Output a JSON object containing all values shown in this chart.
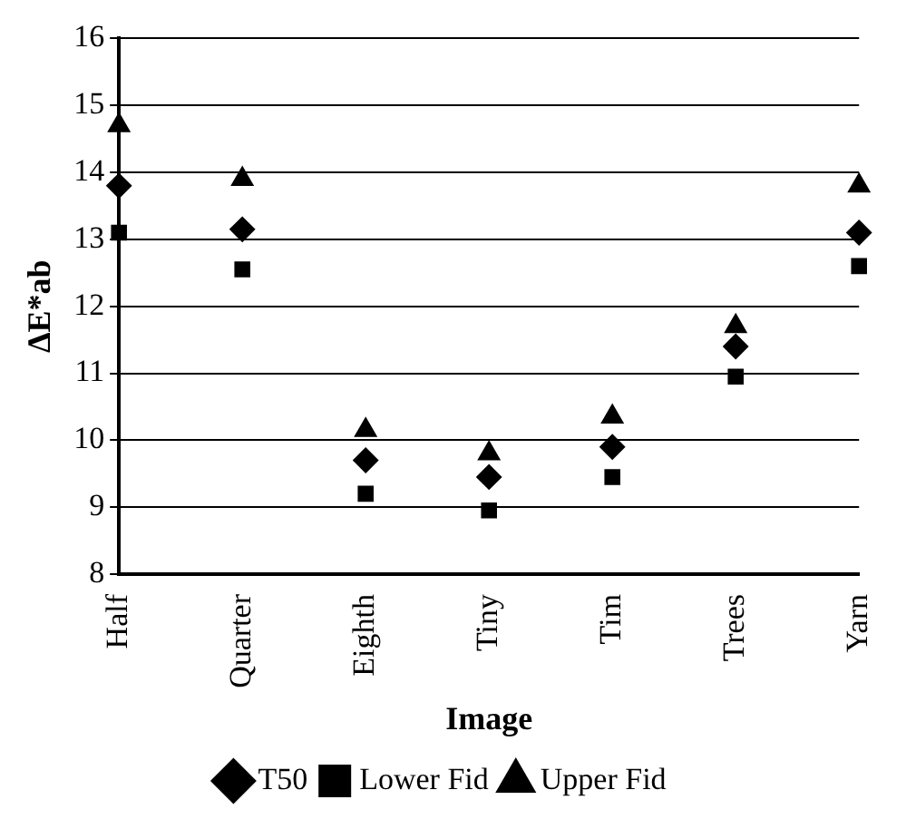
{
  "chart_data": {
    "type": "scatter",
    "xlabel": "Image",
    "ylabel": "ΔE*ab",
    "categories": [
      "Half",
      "Quarter",
      "Eighth",
      "Tiny",
      "Tim",
      "Trees",
      "Yarn"
    ],
    "series": [
      {
        "name": "T50",
        "color": "#000000",
        "marker": "diamond",
        "values": [
          13.8,
          13.15,
          9.7,
          9.45,
          9.9,
          11.4,
          13.1
        ]
      },
      {
        "name": "Lower Fid",
        "color": "#000000",
        "marker": "square",
        "values": [
          13.1,
          12.55,
          9.2,
          8.95,
          9.45,
          10.95,
          12.6
        ]
      },
      {
        "name": "Upper Fid",
        "color": "#000000",
        "marker": "triangle",
        "values": [
          14.7,
          13.9,
          10.15,
          9.8,
          10.35,
          11.7,
          13.8
        ]
      }
    ],
    "ylim": [
      8,
      16
    ],
    "yticks": [
      8,
      9,
      10,
      11,
      12,
      13,
      14,
      15,
      16
    ],
    "grid": "y",
    "legend": "bottom"
  }
}
